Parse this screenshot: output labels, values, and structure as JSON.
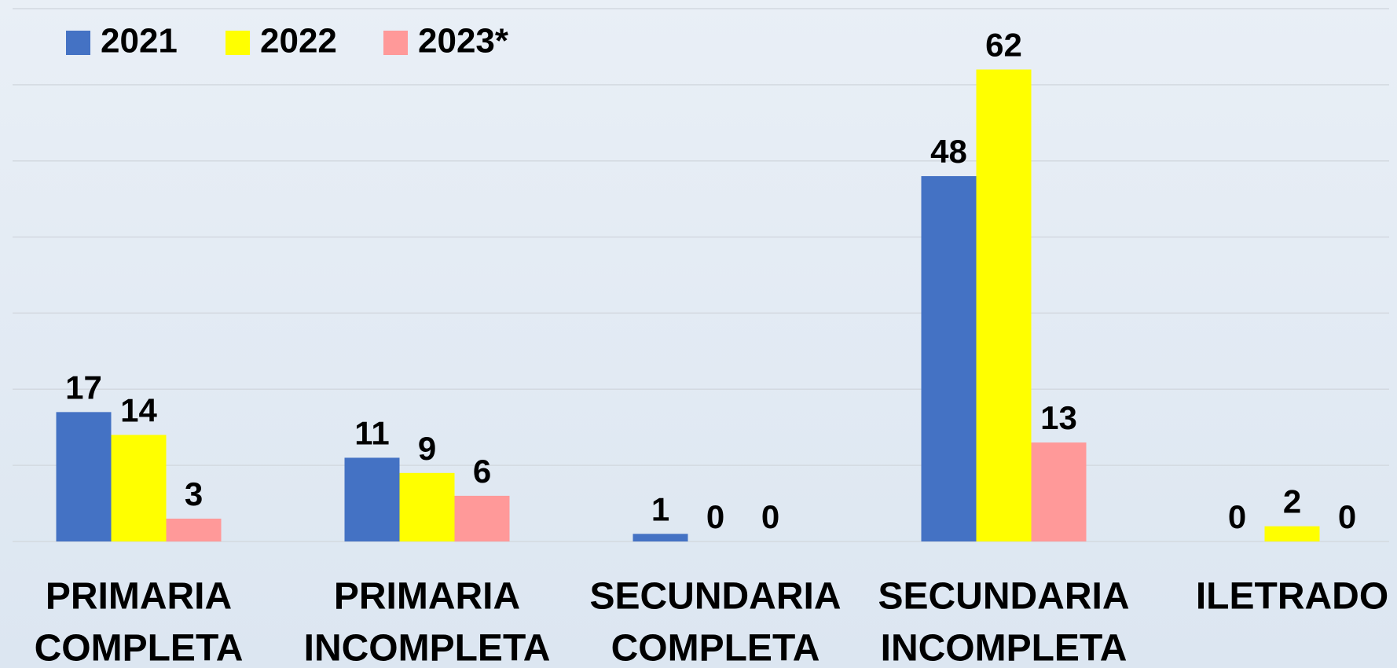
{
  "chart_data": {
    "type": "bar",
    "categories": [
      [
        "PRIMARIA",
        "COMPLETA"
      ],
      [
        "PRIMARIA",
        "INCOMPLETA"
      ],
      [
        "SECUNDARIA",
        "COMPLETA"
      ],
      [
        "SECUNDARIA",
        "INCOMPLETA"
      ],
      [
        "ILETRADO"
      ]
    ],
    "series": [
      {
        "name": "2021",
        "color": "#4472c4",
        "values": [
          17,
          11,
          1,
          48,
          0
        ]
      },
      {
        "name": "2022",
        "color": "#ffff00",
        "values": [
          14,
          9,
          0,
          62,
          2
        ]
      },
      {
        "name": "2023*",
        "color": "#ff9999",
        "values": [
          3,
          6,
          0,
          13,
          0
        ]
      }
    ],
    "ylim": [
      0,
      70
    ],
    "yticks": [
      0,
      10,
      20,
      30,
      40,
      50,
      60,
      70
    ],
    "grid": true,
    "legend": "top-left"
  }
}
